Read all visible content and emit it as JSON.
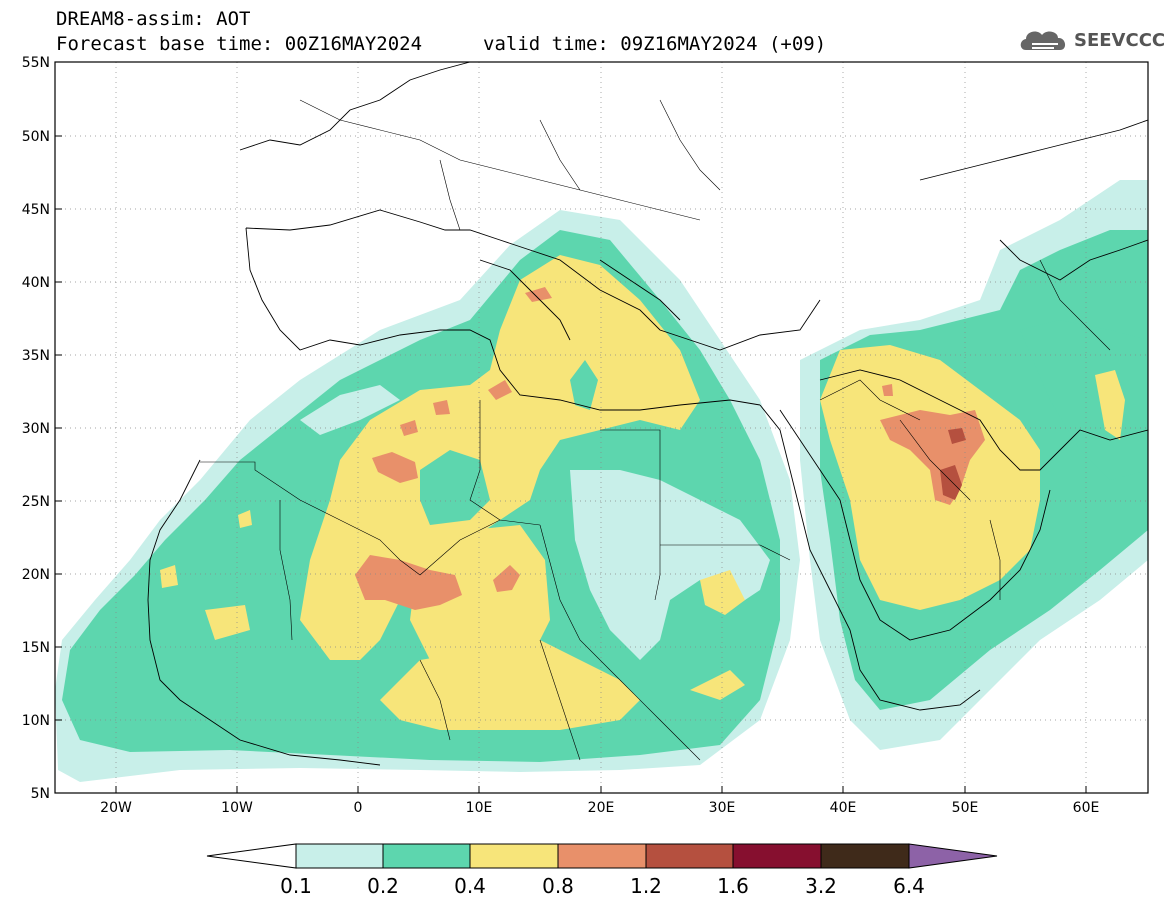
{
  "header": {
    "title_line1": "DREAM8-assim: AOT",
    "title_line2_base": "Forecast base time: 00Z16MAY2024",
    "title_line2_valid": "valid time: 09Z16MAY2024 (+09)",
    "logo_text": "SEEVCCC"
  },
  "map": {
    "lat_labels": [
      "55N",
      "50N",
      "45N",
      "40N",
      "35N",
      "30N",
      "25N",
      "20N",
      "15N",
      "10N",
      "5N"
    ],
    "lon_labels": [
      "20W",
      "10W",
      "0",
      "10E",
      "20E",
      "30E",
      "40E",
      "50E",
      "60E"
    ],
    "lat_range": [
      5,
      55
    ],
    "lon_range": [
      -25,
      65
    ]
  },
  "colorbar": {
    "labels": [
      "0.1",
      "0.2",
      "0.4",
      "0.8",
      "1.2",
      "1.6",
      "3.2",
      "6.4"
    ],
    "colors": [
      "#ffffff",
      "#c8efe9",
      "#5dd6ae",
      "#f7e57a",
      "#e8906a",
      "#b5503f",
      "#860f2f",
      "#3f2a1a",
      "#8d62a7"
    ]
  },
  "colors": {
    "level_0_1": "#c8efe9",
    "level_0_2": "#5dd6ae",
    "level_0_4": "#f7e57a",
    "level_0_8": "#e8906a",
    "level_1_2": "#b5503f"
  }
}
